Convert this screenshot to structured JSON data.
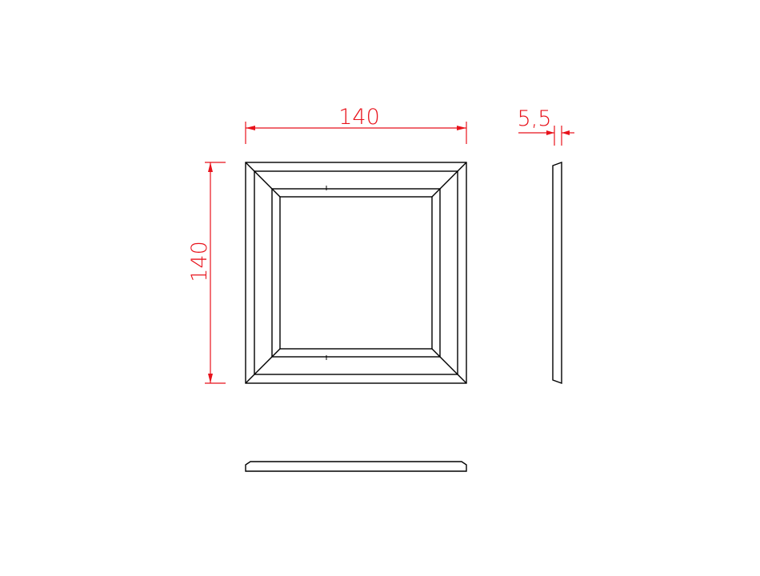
{
  "colors": {
    "line": "#000000",
    "dimension": "#e8121b",
    "background": "#ffffff"
  },
  "dimensions": {
    "width_label": "140",
    "height_label": "140",
    "thickness_label": "5,5"
  }
}
